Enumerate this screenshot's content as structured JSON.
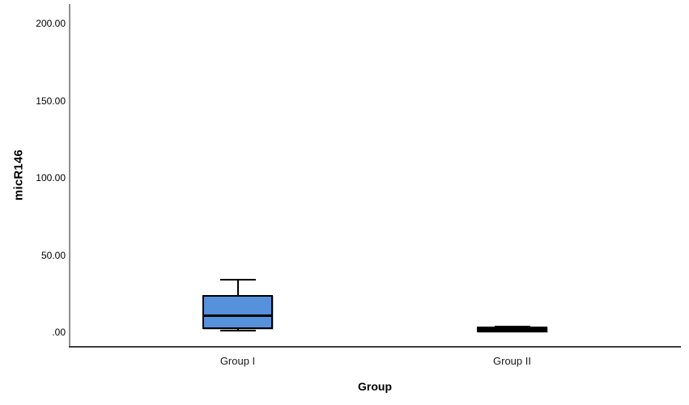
{
  "chart_data": {
    "type": "boxplot",
    "title": "",
    "xlabel": "Group",
    "ylabel": "micR146",
    "categories": [
      "Group I",
      "Group II"
    ],
    "yticks": [
      {
        "label": ".00",
        "value": 0
      },
      {
        "label": "50.00",
        "value": 50
      },
      {
        "label": "100.00",
        "value": 100
      },
      {
        "label": "150.00",
        "value": 150
      },
      {
        "label": "200.00",
        "value": 200
      }
    ],
    "ylim": [
      -9,
      212
    ],
    "grid": false,
    "legend": "none",
    "series": [
      {
        "category": "Group I",
        "min": 1.0,
        "q1": 3.0,
        "median": 10.5,
        "q3": 23.0,
        "max": 34.0
      },
      {
        "category": "Group II",
        "min": 1.0,
        "q1": 1.3,
        "median": 2.0,
        "q3": 2.8,
        "max": 3.5
      }
    ],
    "colors": {
      "box_fill": "#5791DB",
      "box_border": "#000000",
      "median": "#000000",
      "whisker": "#000000",
      "y_axis_line": "#8f8f8f",
      "x_axis_line": "#3d3d3d",
      "background": "#ffffff"
    }
  }
}
